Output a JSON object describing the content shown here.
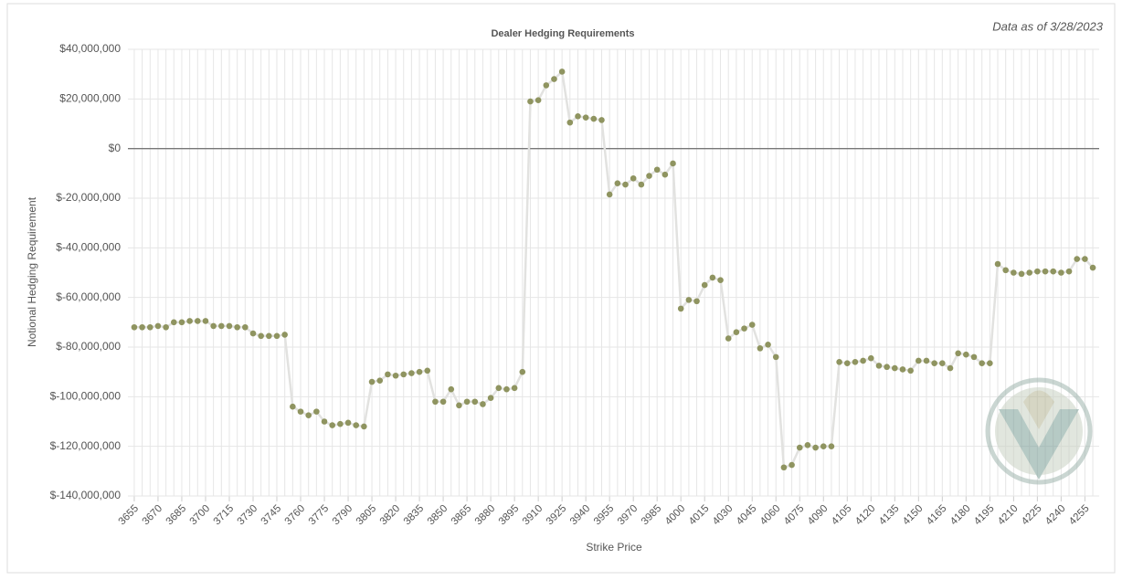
{
  "chart_data": {
    "type": "line",
    "title": "Dealer Hedging Requirements",
    "subtitle": "Data as of 3/28/2023",
    "x_label": "Strike Price",
    "y_label": "Notional Hedging Requirement",
    "x": [
      3655,
      3660,
      3665,
      3670,
      3675,
      3680,
      3685,
      3690,
      3695,
      3700,
      3705,
      3710,
      3715,
      3720,
      3725,
      3730,
      3735,
      3740,
      3745,
      3750,
      3755,
      3760,
      3765,
      3770,
      3775,
      3780,
      3785,
      3790,
      3795,
      3800,
      3805,
      3810,
      3815,
      3820,
      3825,
      3830,
      3835,
      3840,
      3845,
      3850,
      3855,
      3860,
      3865,
      3870,
      3875,
      3880,
      3885,
      3890,
      3895,
      3900,
      3905,
      3910,
      3915,
      3920,
      3925,
      3930,
      3935,
      3940,
      3945,
      3950,
      3955,
      3960,
      3965,
      3970,
      3975,
      3980,
      3985,
      3990,
      3995,
      4000,
      4005,
      4010,
      4015,
      4020,
      4025,
      4030,
      4035,
      4040,
      4045,
      4050,
      4055,
      4060,
      4065,
      4070,
      4075,
      4080,
      4085,
      4090,
      4095,
      4100,
      4105,
      4110,
      4115,
      4120,
      4125,
      4130,
      4135,
      4140,
      4145,
      4150,
      4155,
      4160,
      4165,
      4170,
      4175,
      4180,
      4185,
      4190,
      4195,
      4200,
      4205,
      4210,
      4215,
      4220,
      4225,
      4230,
      4235,
      4240,
      4245,
      4250,
      4255,
      4260
    ],
    "values": [
      -72000000,
      -72000000,
      -72000000,
      -71500000,
      -72000000,
      -70000000,
      -70000000,
      -69500000,
      -69500000,
      -69500000,
      -71500000,
      -71500000,
      -71500000,
      -72000000,
      -72000000,
      -74500000,
      -75500000,
      -75500000,
      -75500000,
      -75000000,
      -104000000,
      -106000000,
      -107500000,
      -106000000,
      -110000000,
      -111500000,
      -111000000,
      -110500000,
      -111500000,
      -112000000,
      -94000000,
      -93500000,
      -91000000,
      -91500000,
      -91000000,
      -90500000,
      -90000000,
      -89500000,
      -102000000,
      -102000000,
      -97000000,
      -103500000,
      -102000000,
      -102000000,
      -103000000,
      -100500000,
      -96500000,
      -97000000,
      -96500000,
      -90000000,
      19000000,
      19500000,
      25500000,
      28000000,
      31000000,
      10500000,
      13000000,
      12500000,
      12000000,
      11500000,
      -18500000,
      -14000000,
      -14500000,
      -12000000,
      -14500000,
      -11000000,
      -8500000,
      -10500000,
      -6000000,
      -64500000,
      -61000000,
      -61500000,
      -55000000,
      -52000000,
      -53000000,
      -76500000,
      -74000000,
      -72500000,
      -71000000,
      -80500000,
      -79000000,
      -84000000,
      -128500000,
      -127500000,
      -120500000,
      -119500000,
      -120500000,
      -120000000,
      -120000000,
      -86000000,
      -86500000,
      -86000000,
      -85500000,
      -84500000,
      -87500000,
      -88000000,
      -88500000,
      -89000000,
      -89500000,
      -85500000,
      -85500000,
      -86500000,
      -86500000,
      -88500000,
      -82500000,
      -83000000,
      -84000000,
      -86500000,
      -86500000,
      -46500000,
      -49000000,
      -50000000,
      -50500000,
      -50000000,
      -49500000,
      -49500000,
      -49500000,
      -50000000,
      -49500000,
      -44500000,
      -44500000,
      -48000000
    ],
    "color": "#8f9460",
    "line_color": "#e2e2e0",
    "xlim": [
      3651,
      4264
    ],
    "xticks": [
      3655,
      3670,
      3685,
      3700,
      3715,
      3730,
      3745,
      3760,
      3775,
      3790,
      3805,
      3820,
      3835,
      3850,
      3865,
      3880,
      3895,
      3910,
      3925,
      3940,
      3955,
      3970,
      3985,
      4000,
      4015,
      4030,
      4045,
      4060,
      4075,
      4090,
      4105,
      4120,
      4135,
      4150,
      4165,
      4180,
      4195,
      4210,
      4225,
      4240,
      4255
    ],
    "ylim": [
      -140000000,
      40000000
    ],
    "yticks": [
      {
        "value": 40000000,
        "label": "$40,000,000"
      },
      {
        "value": 20000000,
        "label": "$20,000,000"
      },
      {
        "value": 0,
        "label": "$0"
      },
      {
        "value": -20000000,
        "label": "$-20,000,000"
      },
      {
        "value": -40000000,
        "label": "$-40,000,000"
      },
      {
        "value": -60000000,
        "label": "$-60,000,000"
      },
      {
        "value": -80000000,
        "label": "$-80,000,000"
      },
      {
        "value": -100000000,
        "label": "$-100,000,000"
      },
      {
        "value": -120000000,
        "label": "$-120,000,000"
      },
      {
        "value": -140000000,
        "label": "$-140,000,000"
      }
    ],
    "grid": true
  }
}
